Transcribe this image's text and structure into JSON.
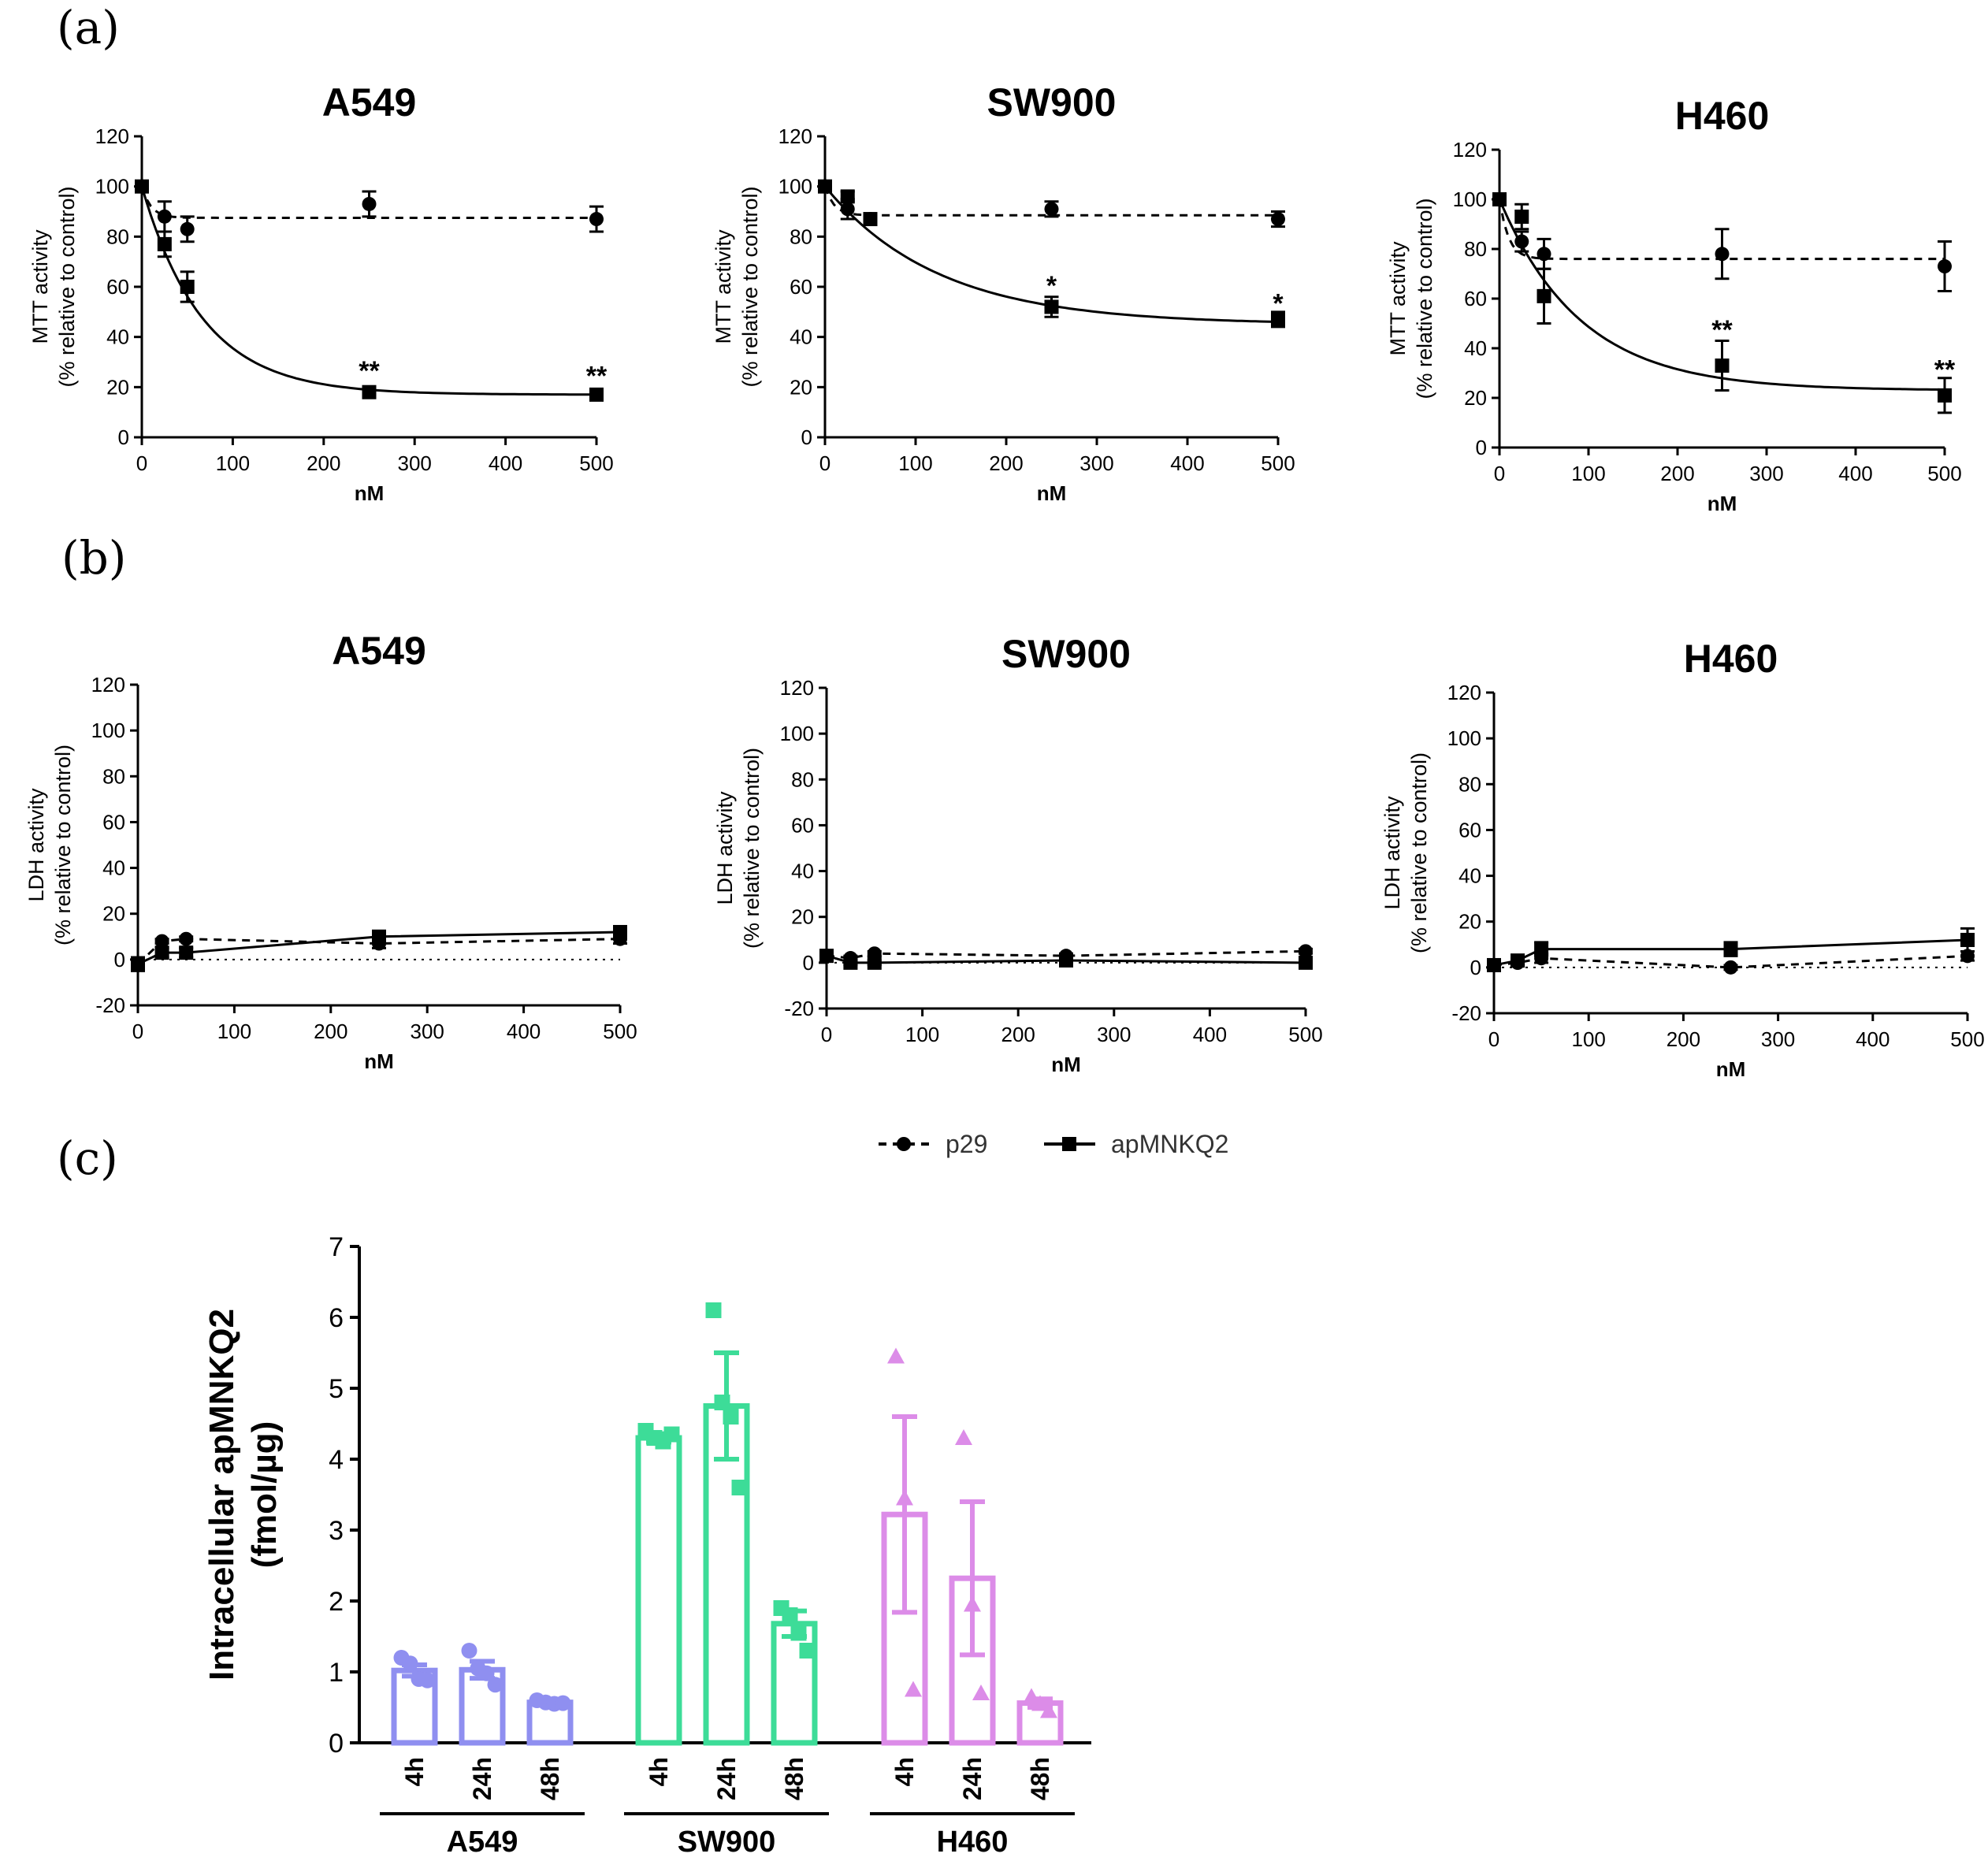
{
  "panels": {
    "a": "(a)",
    "b": "(b)",
    "c": "(c)"
  },
  "legend": {
    "p29": "p29",
    "apMNKQ2": "apMNKQ2"
  },
  "chart_data": [
    {
      "id": "mtt-a549",
      "type": "line",
      "title": "A549",
      "ylabel_line1": "MTT activity",
      "ylabel_line2": "(% relative to control)",
      "xlabel": "nM",
      "xlim": [
        0,
        500
      ],
      "ylim": [
        0,
        120
      ],
      "xticks": [
        0,
        100,
        200,
        300,
        400,
        500
      ],
      "yticks": [
        0,
        20,
        40,
        60,
        80,
        100,
        120
      ],
      "series": [
        {
          "name": "p29",
          "x": [
            0,
            25,
            50,
            250,
            500
          ],
          "y": [
            100,
            88,
            83,
            93,
            87
          ],
          "err": [
            1,
            6,
            5,
            5,
            5
          ],
          "fit_plateau": 87.5,
          "fit_k": 0.1
        },
        {
          "name": "apMNKQ2",
          "x": [
            0,
            25,
            50,
            250,
            500
          ],
          "y": [
            100,
            77,
            60,
            18,
            17
          ],
          "err": [
            1,
            5,
            6,
            2,
            2
          ],
          "fit_plateau": 17,
          "fit_k": 0.015
        }
      ],
      "annotations": [
        {
          "x": 250,
          "y": 26,
          "text": "**"
        },
        {
          "x": 500,
          "y": 24,
          "text": "**"
        }
      ]
    },
    {
      "id": "mtt-sw900",
      "type": "line",
      "title": "SW900",
      "ylabel_line1": "MTT activity",
      "ylabel_line2": "(% relative to control)",
      "xlabel": "nM",
      "xlim": [
        0,
        500
      ],
      "ylim": [
        0,
        120
      ],
      "xticks": [
        0,
        100,
        200,
        300,
        400,
        500
      ],
      "yticks": [
        0,
        20,
        40,
        60,
        80,
        100,
        120
      ],
      "series": [
        {
          "name": "p29",
          "x": [
            0,
            25,
            50,
            250,
            500
          ],
          "y": [
            100,
            91,
            87,
            91,
            87
          ],
          "err": [
            1,
            4,
            2,
            3,
            3
          ],
          "fit_plateau": 88.5,
          "fit_k": 0.1
        },
        {
          "name": "apMNKQ2",
          "x": [
            0,
            25,
            50,
            250,
            500
          ],
          "y": [
            100,
            96,
            87,
            52,
            47
          ],
          "err": [
            1,
            2,
            2,
            4,
            3
          ],
          "fit_plateau": 45,
          "fit_k": 0.008
        }
      ],
      "annotations": [
        {
          "x": 250,
          "y": 60,
          "text": "*"
        },
        {
          "x": 500,
          "y": 53,
          "text": "*"
        }
      ]
    },
    {
      "id": "mtt-h460",
      "type": "line",
      "title": "H460",
      "ylabel_line1": "MTT activity",
      "ylabel_line2": "(% relative to control)",
      "xlabel": "nM",
      "xlim": [
        0,
        500
      ],
      "ylim": [
        0,
        120
      ],
      "xticks": [
        0,
        100,
        200,
        300,
        400,
        500
      ],
      "yticks": [
        0,
        20,
        40,
        60,
        80,
        100,
        120
      ],
      "series": [
        {
          "name": "p29",
          "x": [
            0,
            25,
            50,
            250,
            500
          ],
          "y": [
            100,
            83,
            78,
            78,
            73
          ],
          "err": [
            1,
            4,
            6,
            10,
            10
          ],
          "fit_plateau": 76,
          "fit_k": 0.1
        },
        {
          "name": "apMNKQ2",
          "x": [
            0,
            25,
            50,
            250,
            500
          ],
          "y": [
            100,
            93,
            61,
            33,
            21
          ],
          "err": [
            1,
            5,
            11,
            10,
            7
          ],
          "fit_plateau": 23,
          "fit_k": 0.011
        }
      ],
      "annotations": [
        {
          "x": 250,
          "y": 47,
          "text": "**"
        },
        {
          "x": 500,
          "y": 31,
          "text": "**"
        }
      ]
    },
    {
      "id": "ldh-a549",
      "type": "line",
      "title": "A549",
      "ylabel_line1": "LDH activity",
      "ylabel_line2": "(% relative to control)",
      "xlabel": "nM",
      "xlim": [
        0,
        500
      ],
      "ylim": [
        -20,
        120
      ],
      "xticks": [
        0,
        100,
        200,
        300,
        400,
        500
      ],
      "yticks": [
        -20,
        0,
        20,
        40,
        60,
        80,
        100,
        120
      ],
      "series": [
        {
          "name": "p29",
          "x": [
            0,
            25,
            50,
            250,
            500
          ],
          "y": [
            -2,
            8,
            9,
            7,
            9
          ],
          "err": [
            2,
            1,
            1,
            2,
            2
          ]
        },
        {
          "name": "apMNKQ2",
          "x": [
            0,
            25,
            50,
            250,
            500
          ],
          "y": [
            -2,
            3,
            3,
            10,
            12
          ],
          "err": [
            3,
            2,
            2,
            2,
            2
          ]
        }
      ],
      "annotations": []
    },
    {
      "id": "ldh-sw900",
      "type": "line",
      "title": "SW900",
      "ylabel_line1": "LDH activity",
      "ylabel_line2": "(% relative to control)",
      "xlabel": "nM",
      "xlim": [
        0,
        500
      ],
      "ylim": [
        -20,
        120
      ],
      "xticks": [
        0,
        100,
        200,
        300,
        400,
        500
      ],
      "yticks": [
        -20,
        0,
        20,
        40,
        60,
        80,
        100,
        120
      ],
      "series": [
        {
          "name": "p29",
          "x": [
            0,
            25,
            50,
            250,
            500
          ],
          "y": [
            3,
            2,
            4,
            3,
            5
          ],
          "err": [
            1,
            1,
            1,
            1,
            1
          ]
        },
        {
          "name": "apMNKQ2",
          "x": [
            0,
            25,
            50,
            250,
            500
          ],
          "y": [
            3,
            0,
            0,
            1,
            0
          ],
          "err": [
            1,
            1,
            1,
            1,
            1
          ]
        }
      ],
      "annotations": []
    },
    {
      "id": "ldh-h460",
      "type": "line",
      "title": "H460",
      "ylabel_line1": "LDH activity",
      "ylabel_line2": "(% relative to control)",
      "xlabel": "nM",
      "xlim": [
        0,
        500
      ],
      "ylim": [
        -20,
        120
      ],
      "xticks": [
        0,
        100,
        200,
        300,
        400,
        500
      ],
      "yticks": [
        -20,
        0,
        20,
        40,
        60,
        80,
        100,
        120
      ],
      "series": [
        {
          "name": "p29",
          "x": [
            0,
            25,
            50,
            250,
            500
          ],
          "y": [
            1,
            2,
            4,
            0,
            5
          ],
          "err": [
            1,
            1,
            2,
            1,
            2
          ]
        },
        {
          "name": "apMNKQ2",
          "x": [
            0,
            25,
            50,
            250,
            500
          ],
          "y": [
            1,
            3,
            8,
            8,
            12
          ],
          "err": [
            1,
            1,
            3,
            3,
            5
          ]
        }
      ],
      "annotations": []
    },
    {
      "id": "intracellular",
      "type": "bar",
      "ylabel_line1": "Intracellular apMNKQ2",
      "ylabel_line2": "(fmol/µg)",
      "ylim": [
        0,
        7
      ],
      "yticks": [
        0,
        1,
        2,
        3,
        4,
        5,
        6,
        7
      ],
      "groups": [
        {
          "name": "A549",
          "color": "#8f8ff0",
          "marker": "circle",
          "bars": [
            {
              "label": "4h",
              "mean": 1.02,
              "sem": 0.08,
              "points": [
                1.2,
                1.12,
                0.9,
                0.88
              ]
            },
            {
              "label": "24h",
              "mean": 1.03,
              "sem": 0.12,
              "points": [
                1.3,
                1.05,
                0.98,
                0.82
              ]
            },
            {
              "label": "48h",
              "mean": 0.57,
              "sem": 0.02,
              "points": [
                0.6,
                0.57,
                0.55,
                0.56
              ]
            }
          ]
        },
        {
          "name": "SW900",
          "color": "#3ddc98",
          "marker": "square",
          "bars": [
            {
              "label": "4h",
              "mean": 4.3,
              "sem": 0.06,
              "points": [
                4.4,
                4.3,
                4.25,
                4.35
              ]
            },
            {
              "label": "24h",
              "mean": 4.75,
              "sem": 0.75,
              "points": [
                6.1,
                4.8,
                4.6,
                3.6
              ]
            },
            {
              "label": "48h",
              "mean": 1.68,
              "sem": 0.18,
              "points": [
                1.9,
                1.8,
                1.55,
                1.3
              ]
            }
          ]
        },
        {
          "name": "H460",
          "color": "#dc8ce8",
          "marker": "triangle",
          "bars": [
            {
              "label": "4h",
              "mean": 3.22,
              "sem": 1.38,
              "points": [
                5.45,
                3.45,
                0.75
              ]
            },
            {
              "label": "24h",
              "mean": 2.32,
              "sem": 1.08,
              "points": [
                4.3,
                1.95,
                0.7
              ]
            },
            {
              "label": "48h",
              "mean": 0.56,
              "sem": 0.06,
              "points": [
                0.65,
                0.55,
                0.45
              ]
            }
          ]
        }
      ]
    }
  ]
}
